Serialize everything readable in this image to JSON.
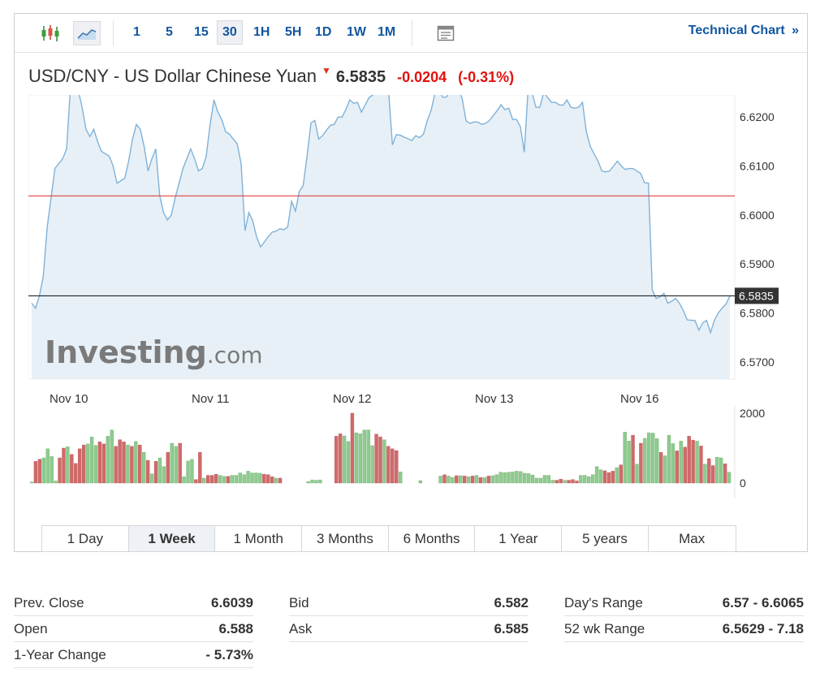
{
  "toolbar": {
    "chart_type_icons": [
      "candlestick-icon",
      "area-chart-icon"
    ],
    "timeframes": [
      "1",
      "5",
      "15",
      "30",
      "1H",
      "5H",
      "1D",
      "1W",
      "1M"
    ],
    "active_timeframe": "30",
    "technical_chart_label": "Technical Chart",
    "technical_chart_arrow": "»"
  },
  "header": {
    "title": "USD/CNY - US Dollar Chinese Yuan",
    "last": "6.5835",
    "change": "-0.0204",
    "change_pct": "(-0.31%)"
  },
  "colors": {
    "line": "#7fb2d9",
    "area": "#e3edf5",
    "prev_close_line": "#e04040",
    "current_line": "#222222",
    "vol_up": "#8ecb8e",
    "vol_down": "#d06a6a",
    "accent": "#1256a0",
    "negative": "#e0120e"
  },
  "watermark": {
    "part1": "Investing",
    "part2": ".com"
  },
  "chart_data": {
    "type": "line",
    "title": "USD/CNY - US Dollar Chinese Yuan",
    "x_labels": [
      "Nov 10",
      "Nov 11",
      "Nov 12",
      "Nov 13",
      "Nov 16"
    ],
    "y_ticks": [
      "6.6200",
      "6.6100",
      "6.6000",
      "6.5900",
      "6.5800",
      "6.5700"
    ],
    "ylim": [
      6.5665,
      6.6245
    ],
    "prev_close": 6.6039,
    "current": 6.5835,
    "current_label": "6.5835",
    "series": [
      {
        "values": [
          6.582,
          6.581,
          6.5835,
          6.5875,
          6.5975,
          6.6035,
          6.6095,
          6.6105,
          6.6115,
          6.6135,
          6.626,
          6.6255,
          6.6255,
          6.622,
          6.6175,
          6.616,
          6.6175,
          6.615,
          6.613,
          6.6125,
          6.612,
          6.61,
          6.6065,
          6.607,
          6.6075,
          6.611,
          6.6155,
          6.6185,
          6.6175,
          6.614,
          6.609,
          6.6115,
          6.6135,
          6.604,
          6.6005,
          6.599,
          6.6,
          6.6035,
          6.6065,
          6.6095,
          6.6115,
          6.6135,
          6.6115,
          6.609,
          6.6095,
          6.612,
          6.6185,
          6.6235,
          6.621,
          6.6195,
          6.617,
          6.6165,
          6.6155,
          6.6145,
          6.6105,
          6.5968,
          6.6005,
          6.5988,
          6.5955,
          6.5935,
          6.5945,
          6.5956,
          6.5965,
          6.5967,
          6.5972,
          6.597,
          6.5975,
          6.6028,
          6.6008,
          6.6048,
          6.606,
          6.612,
          6.6188,
          6.6193,
          6.6155,
          6.6162,
          6.6173,
          6.6183,
          6.6185,
          6.62,
          6.62,
          6.6215,
          6.6235,
          6.6228,
          6.623,
          6.621,
          6.6225,
          6.624,
          6.6245,
          6.6254,
          6.6257,
          6.6255,
          6.6255,
          6.6143,
          6.6164,
          6.6163,
          6.6159,
          6.6156,
          6.6152,
          6.6162,
          6.6158,
          6.6165,
          6.6193,
          6.6214,
          6.625,
          6.6255,
          6.624,
          6.6241,
          6.6256,
          6.6261,
          6.6258,
          6.6237,
          6.6192,
          6.6187,
          6.619,
          6.619,
          6.6185,
          6.6187,
          6.6193,
          6.6203,
          6.6213,
          6.6225,
          6.6215,
          6.6218,
          6.6195,
          6.6195,
          6.618,
          6.6128,
          6.626,
          6.625,
          6.622,
          6.622,
          6.625,
          6.624,
          6.623,
          6.623,
          6.6225,
          6.6224,
          6.6235,
          6.622,
          6.6218,
          6.622,
          6.623,
          6.617,
          6.614,
          6.6125,
          6.611,
          6.609,
          6.6088,
          6.609,
          6.61,
          6.611,
          6.61,
          6.6093,
          6.6095,
          6.6095,
          6.609,
          6.6085,
          6.6066,
          6.6065,
          6.5847,
          6.583,
          6.5833,
          6.584,
          6.582,
          6.5824,
          6.583,
          6.582,
          6.5805,
          6.5786,
          6.5785,
          6.5785,
          6.5765,
          6.578,
          6.5785,
          6.576,
          6.5785,
          6.58,
          6.581,
          6.5818,
          6.5835
        ]
      }
    ],
    "volume": {
      "ylim": [
        0,
        2000
      ],
      "y_ticks": [
        "2000",
        "0"
      ],
      "values": [
        30,
        620,
        680,
        720,
        980,
        760,
        60,
        720,
        1000,
        1040,
        820,
        560,
        980,
        1090,
        1120,
        1320,
        1080,
        1180,
        1120,
        1340,
        1520,
        1050,
        1240,
        1180,
        1090,
        1050,
        1190,
        1090,
        880,
        650,
        260,
        620,
        720,
        470,
        880,
        1140,
        1050,
        1140,
        180,
        630,
        680,
        100,
        880,
        140,
        220,
        220,
        250,
        220,
        190,
        190,
        220,
        220,
        290,
        240,
        340,
        290,
        290,
        280,
        250,
        240,
        180,
        140,
        140,
        0,
        0,
        0,
        0,
        0,
        0,
        40,
        90,
        80,
        90,
        0,
        0,
        0,
        1340,
        1410,
        1350,
        1190,
        2000,
        1440,
        1410,
        1520,
        1520,
        1070,
        1400,
        1320,
        1240,
        1050,
        980,
        930,
        320,
        0,
        0,
        0,
        0,
        70,
        0,
        0,
        0,
        0,
        200,
        240,
        200,
        160,
        210,
        210,
        200,
        180,
        200,
        220,
        160,
        160,
        200,
        210,
        240,
        310,
        300,
        310,
        320,
        340,
        330,
        280,
        270,
        230,
        140,
        140,
        220,
        220,
        80,
        80,
        110,
        80,
        80,
        100,
        60,
        220,
        220,
        180,
        240,
        470,
        380,
        350,
        300,
        340,
        440,
        520,
        1460,
        1200,
        1370,
        540,
        1140,
        1280,
        1440,
        1430,
        1270,
        880,
        780,
        1370,
        1130,
        920,
        1200,
        1030,
        1340,
        1230,
        1200,
        1060,
        540,
        700,
        500,
        740,
        720,
        550,
        310
      ],
      "up": [
        true,
        false,
        false,
        true,
        true,
        true,
        true,
        false,
        false,
        true,
        false,
        false,
        false,
        false,
        true,
        true,
        true,
        false,
        false,
        true,
        true,
        false,
        false,
        false,
        true,
        false,
        true,
        false,
        true,
        false,
        true,
        false,
        true,
        true,
        false,
        true,
        true,
        false,
        true,
        true,
        true,
        false,
        false,
        true,
        false,
        false,
        false,
        true,
        true,
        false,
        true,
        true,
        true,
        true,
        true,
        true,
        true,
        true,
        false,
        false,
        false,
        true,
        false,
        true,
        true,
        true,
        true,
        true,
        true,
        true,
        true,
        true,
        true,
        true,
        true,
        true,
        false,
        false,
        true,
        true,
        false,
        true,
        true,
        true,
        true,
        true,
        false,
        false,
        true,
        false,
        false,
        false,
        true,
        true,
        true,
        true,
        true,
        true,
        true,
        true,
        true,
        true,
        true,
        false,
        true,
        true,
        false,
        true,
        false,
        true,
        false,
        true,
        false,
        true,
        false,
        true,
        true,
        true,
        true,
        true,
        true,
        true,
        true,
        true,
        true,
        true,
        true,
        true,
        true,
        true,
        true,
        false,
        false,
        true,
        false,
        false,
        false,
        true,
        true,
        true,
        true,
        true,
        true,
        false,
        false,
        false,
        true,
        false,
        true,
        true,
        false,
        true,
        false,
        true,
        true,
        true,
        true,
        false,
        true,
        true,
        true,
        false,
        true,
        false,
        false,
        false,
        true,
        false,
        true,
        false,
        false,
        true,
        true,
        false,
        true,
        true,
        true
      ]
    }
  },
  "ranges": [
    "1 Day",
    "1 Week",
    "1 Month",
    "3 Months",
    "6 Months",
    "1 Year",
    "5 years",
    "Max"
  ],
  "active_range": "1 Week",
  "stats": {
    "col1": [
      {
        "label": "Prev. Close",
        "value": "6.6039"
      },
      {
        "label": "Open",
        "value": "6.588"
      },
      {
        "label": "1-Year Change",
        "value": "- 5.73%"
      }
    ],
    "col2": [
      {
        "label": "Bid",
        "value": "6.582"
      },
      {
        "label": "Ask",
        "value": "6.585"
      }
    ],
    "col3": [
      {
        "label": "Day's Range",
        "value": "6.57 - 6.6065"
      },
      {
        "label": "52 wk Range",
        "value": "6.5629 - 7.18"
      }
    ]
  }
}
